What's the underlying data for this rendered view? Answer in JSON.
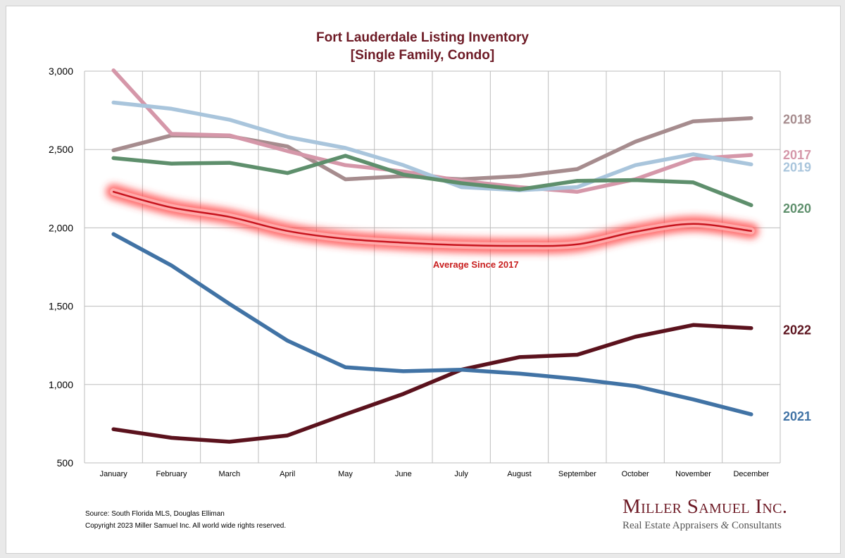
{
  "chart_data": {
    "type": "line",
    "title_line1": "Fort Lauderdale Listing Inventory",
    "title_line2": "[Single Family, Condo]",
    "categories": [
      "January",
      "February",
      "March",
      "April",
      "May",
      "June",
      "July",
      "August",
      "September",
      "October",
      "November",
      "December"
    ],
    "ylim": [
      500,
      3000
    ],
    "yticks": [
      500,
      1000,
      1500,
      2000,
      2500,
      3000
    ],
    "ytick_labels": [
      "500",
      "1,000",
      "1,500",
      "2,000",
      "2,500",
      "3,000"
    ],
    "grid": true,
    "series": [
      {
        "name": "2018",
        "color": "#a68c8e",
        "values": [
          2495,
          2590,
          2585,
          2520,
          2310,
          2330,
          2310,
          2330,
          2375,
          2550,
          2680,
          2700
        ]
      },
      {
        "name": "2017",
        "color": "#d597a9",
        "values": [
          3005,
          2600,
          2590,
          2490,
          2400,
          2360,
          2300,
          2260,
          2230,
          2310,
          2440,
          2465
        ]
      },
      {
        "name": "2019",
        "color": "#a9c5dc",
        "values": [
          2800,
          2760,
          2690,
          2580,
          2510,
          2400,
          2260,
          2240,
          2260,
          2400,
          2470,
          2405
        ]
      },
      {
        "name": "2020",
        "color": "#5e8f6c",
        "values": [
          2445,
          2410,
          2415,
          2350,
          2460,
          2340,
          2285,
          2245,
          2300,
          2305,
          2290,
          2145
        ]
      },
      {
        "name": "2022",
        "color": "#5b121d",
        "values": [
          715,
          660,
          635,
          675,
          810,
          940,
          1095,
          1175,
          1190,
          1305,
          1380,
          1360
        ]
      },
      {
        "name": "2021",
        "color": "#4173a5",
        "values": [
          1960,
          1760,
          1515,
          1280,
          1110,
          1085,
          1095,
          1070,
          1035,
          990,
          905,
          810
        ]
      }
    ],
    "average": {
      "name": "Average  Since 2017",
      "color": "#c81e1e",
      "values": [
        2230,
        2130,
        2070,
        1980,
        1930,
        1905,
        1890,
        1885,
        1895,
        1975,
        2025,
        1980
      ]
    }
  },
  "footer": {
    "source": "Source: South Florida MLS, Douglas Elliman",
    "copyright": "Copyright 2023 Miller Samuel Inc.  All world wide rights reserved."
  },
  "brand": {
    "name": "Miller Samuel Inc.",
    "tagline_part1": "Real Estate Appraisers ",
    "tagline_amp": "&",
    "tagline_part2": " Consultants",
    "color": "#6d1a25"
  }
}
